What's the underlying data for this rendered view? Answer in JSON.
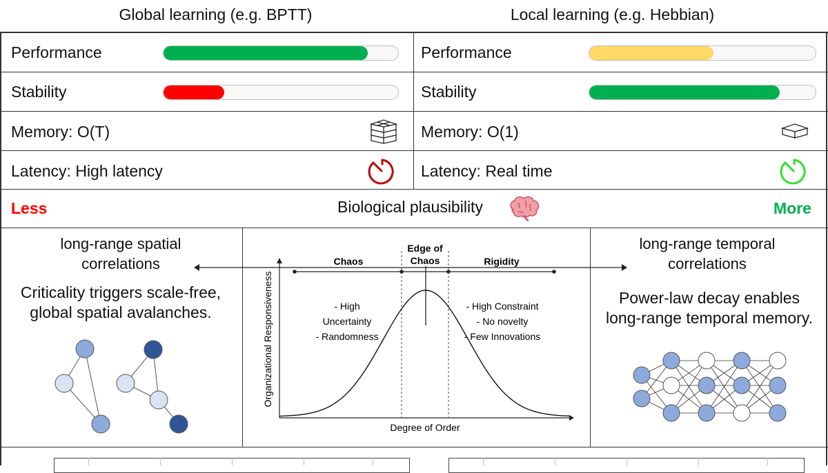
{
  "headers": {
    "global": "Global learning (e.g. BPTT)",
    "local": "Local learning (e.g. Hebbian)"
  },
  "global": {
    "performance_label": "Performance",
    "performance_level": 0.87,
    "performance_color": "#00b050",
    "stability_label": "Stability",
    "stability_level": 0.26,
    "stability_color": "#ff0000",
    "memory_label": "Memory: O(T)",
    "memory_icon": "stacked-layers-icon",
    "latency_label": "Latency: High latency",
    "latency_icon": "stopwatch-icon",
    "latency_color": "#c00000"
  },
  "local": {
    "performance_label": "Performance",
    "performance_level": 0.55,
    "performance_color": "#ffd966",
    "stability_label": "Stability",
    "stability_level": 0.84,
    "stability_color": "#00b050",
    "memory_label": "Memory: O(1)",
    "memory_icon": "single-layer-icon",
    "latency_label": "Latency: Real time",
    "latency_icon": "stopwatch-icon",
    "latency_color": "#33dd33"
  },
  "plausibility": {
    "less": "Less",
    "less_color": "#ff0000",
    "label": "Biological plausibility",
    "more": "More",
    "more_color": "#00b050",
    "icon": "brain-icon"
  },
  "spatial": {
    "title_line1": "long-range spatial",
    "title_line2": "correlations",
    "desc_line1": "Criticality triggers scale-free,",
    "desc_line2": "global spatial avalanches."
  },
  "temporal": {
    "title_line1": "long-range temporal",
    "title_line2": "correlations",
    "desc_line1": "Power-law decay enables",
    "desc_line2": "long-range temporal memory."
  },
  "criticality_plot": {
    "ylabel": "Organizational Responsiveness",
    "xlabel": "Degree of Order",
    "regions": {
      "chaos": "Chaos",
      "edge_line1": "Edge of",
      "edge_line2": "Chaos",
      "rigidity": "Rigidity"
    },
    "chaos_notes": [
      "- High",
      "Uncertainty",
      "- Randomness"
    ],
    "rigidity_notes": [
      "- High Constraint",
      "- No novelty",
      "- Few Innovations"
    ]
  }
}
